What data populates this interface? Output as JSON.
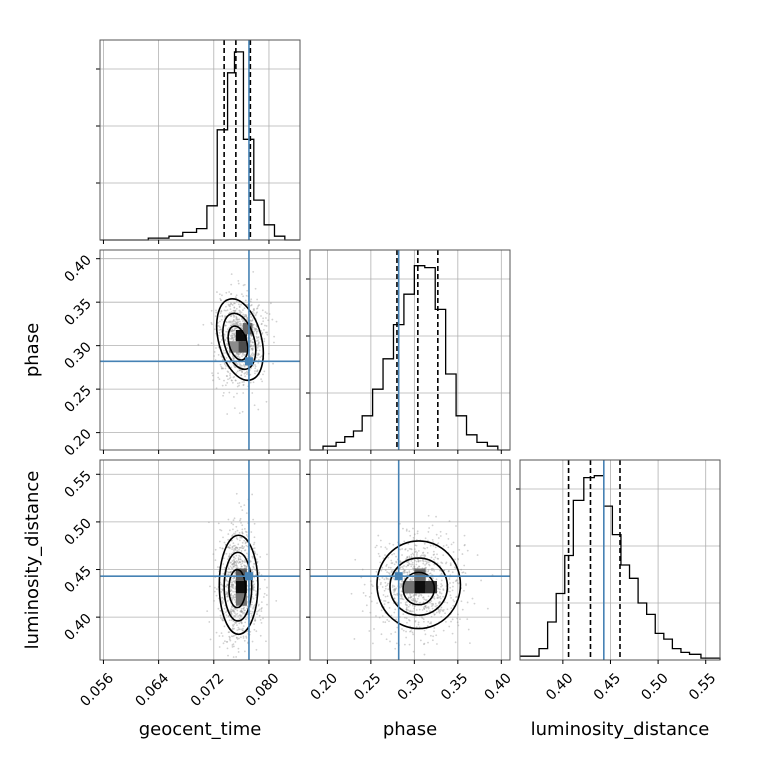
{
  "chart_data": {
    "type": "corner",
    "parameters": [
      {
        "name": "geocent_time",
        "axis_label": "geocent_time",
        "range": [
          0.0555,
          0.0845
        ],
        "ticks": [
          0.056,
          0.064,
          0.072,
          0.08
        ],
        "tick_labels": [
          "0.056",
          "0.064",
          "0.072",
          "0.080"
        ],
        "truth": 0.0771,
        "quantiles": [
          0.0735,
          0.0752,
          0.0773
        ],
        "hist_max": 1.0,
        "histogram": [
          [
            0.0555,
            0.0
          ],
          [
            0.0575,
            0.0
          ],
          [
            0.0625,
            0.01
          ],
          [
            0.0655,
            0.02
          ],
          [
            0.0675,
            0.04
          ],
          [
            0.0695,
            0.06
          ],
          [
            0.071,
            0.18
          ],
          [
            0.0725,
            0.58
          ],
          [
            0.074,
            0.88
          ],
          [
            0.075,
            0.99
          ],
          [
            0.0763,
            0.53
          ],
          [
            0.0778,
            0.21
          ],
          [
            0.0793,
            0.08
          ],
          [
            0.0808,
            0.02
          ],
          [
            0.0823,
            0.0
          ],
          [
            0.0845,
            0.0
          ]
        ]
      },
      {
        "name": "phase",
        "axis_label": "phase",
        "range": [
          0.18,
          0.41
        ],
        "ticks": [
          0.2,
          0.25,
          0.3,
          0.35,
          0.4
        ],
        "tick_labels": [
          "0.20",
          "0.25",
          "0.30",
          "0.35",
          "0.40"
        ],
        "truth": 0.282,
        "quantiles": [
          0.28,
          0.304,
          0.327
        ],
        "hist_max": 1.0,
        "histogram": [
          [
            0.18,
            0.0
          ],
          [
            0.195,
            0.02
          ],
          [
            0.21,
            0.04
          ],
          [
            0.22,
            0.07
          ],
          [
            0.23,
            0.1
          ],
          [
            0.24,
            0.18
          ],
          [
            0.252,
            0.32
          ],
          [
            0.264,
            0.48
          ],
          [
            0.276,
            0.66
          ],
          [
            0.288,
            0.82
          ],
          [
            0.3,
            0.97
          ],
          [
            0.312,
            0.96
          ],
          [
            0.324,
            0.74
          ],
          [
            0.336,
            0.4
          ],
          [
            0.348,
            0.18
          ],
          [
            0.36,
            0.08
          ],
          [
            0.372,
            0.04
          ],
          [
            0.384,
            0.02
          ],
          [
            0.396,
            0.0
          ],
          [
            0.41,
            0.0
          ]
        ]
      },
      {
        "name": "luminosity_distance",
        "axis_label": "luminosity_distance",
        "range": [
          0.355,
          0.565
        ],
        "ticks": [
          0.4,
          0.45,
          0.5,
          0.55
        ],
        "tick_labels": [
          "0.40",
          "0.45",
          "0.50",
          "0.55"
        ],
        "truth": 0.443,
        "quantiles": [
          0.406,
          0.429,
          0.46
        ],
        "hist_max": 1.0,
        "histogram": [
          [
            0.355,
            0.02
          ],
          [
            0.375,
            0.06
          ],
          [
            0.384,
            0.2
          ],
          [
            0.393,
            0.35
          ],
          [
            0.402,
            0.55
          ],
          [
            0.411,
            0.84
          ],
          [
            0.422,
            0.96
          ],
          [
            0.433,
            0.97
          ],
          [
            0.443,
            0.81
          ],
          [
            0.452,
            0.66
          ],
          [
            0.461,
            0.5
          ],
          [
            0.47,
            0.43
          ],
          [
            0.479,
            0.3
          ],
          [
            0.488,
            0.24
          ],
          [
            0.497,
            0.14
          ],
          [
            0.506,
            0.11
          ],
          [
            0.515,
            0.06
          ],
          [
            0.524,
            0.04
          ],
          [
            0.533,
            0.03
          ],
          [
            0.545,
            0.01
          ],
          [
            0.565,
            0.0
          ]
        ]
      }
    ],
    "pairs": [
      {
        "x": "geocent_time",
        "y": "phase",
        "truth_marker": [
          0.0771,
          0.282
        ],
        "density_cells": [
          {
            "x": 0.0752,
            "y": 0.305,
            "w": 0.0016,
            "h": 0.013,
            "shade": 0.95
          },
          {
            "x": 0.0752,
            "y": 0.292,
            "w": 0.0016,
            "h": 0.013,
            "shade": 0.7
          },
          {
            "x": 0.0762,
            "y": 0.313,
            "w": 0.0014,
            "h": 0.013,
            "shade": 0.6
          },
          {
            "x": 0.0742,
            "y": 0.292,
            "w": 0.0014,
            "h": 0.013,
            "shade": 0.45
          }
        ],
        "contours": [
          {
            "cx": 0.0755,
            "cy": 0.303,
            "rx": 0.0013,
            "ry": 0.02,
            "rot": -15
          },
          {
            "cx": 0.0757,
            "cy": 0.305,
            "rx": 0.0022,
            "ry": 0.033,
            "rot": -15
          },
          {
            "cx": 0.0758,
            "cy": 0.307,
            "rx": 0.0031,
            "ry": 0.048,
            "rot": -15
          }
        ]
      },
      {
        "x": "geocent_time",
        "y": "luminosity_distance",
        "truth_marker": [
          0.0771,
          0.443
        ],
        "density_cells": [
          {
            "x": 0.0752,
            "y": 0.425,
            "w": 0.0016,
            "h": 0.013,
            "shade": 0.95
          },
          {
            "x": 0.0752,
            "y": 0.438,
            "w": 0.0016,
            "h": 0.013,
            "shade": 0.65
          },
          {
            "x": 0.0752,
            "y": 0.412,
            "w": 0.0016,
            "h": 0.013,
            "shade": 0.55
          }
        ],
        "contours": [
          {
            "cx": 0.0754,
            "cy": 0.43,
            "rx": 0.0012,
            "ry": 0.02,
            "rot": 0
          },
          {
            "cx": 0.0755,
            "cy": 0.432,
            "rx": 0.002,
            "ry": 0.036,
            "rot": 0
          },
          {
            "cx": 0.0756,
            "cy": 0.434,
            "rx": 0.0028,
            "ry": 0.052,
            "rot": 0
          }
        ]
      },
      {
        "x": "phase",
        "y": "luminosity_distance",
        "truth_marker": [
          0.282,
          0.443
        ],
        "density_cells": [
          {
            "x": 0.3,
            "y": 0.425,
            "w": 0.013,
            "h": 0.013,
            "shade": 0.95
          },
          {
            "x": 0.313,
            "y": 0.425,
            "w": 0.013,
            "h": 0.013,
            "shade": 0.8
          },
          {
            "x": 0.3,
            "y": 0.438,
            "w": 0.013,
            "h": 0.013,
            "shade": 0.6
          },
          {
            "x": 0.287,
            "y": 0.425,
            "w": 0.013,
            "h": 0.013,
            "shade": 0.55
          }
        ],
        "contours": [
          {
            "cx": 0.305,
            "cy": 0.43,
            "rx": 0.018,
            "ry": 0.017,
            "rot": 0
          },
          {
            "cx": 0.305,
            "cy": 0.432,
            "rx": 0.033,
            "ry": 0.03,
            "rot": 0
          },
          {
            "cx": 0.305,
            "cy": 0.434,
            "rx": 0.048,
            "ry": 0.046,
            "rot": 0
          }
        ]
      }
    ],
    "grid": true,
    "colors": {
      "truth": "#4682b4",
      "histogram": "#000000",
      "quantile": "#000000",
      "grid": "#b0b0b0",
      "scatter": "#9a9a9a"
    }
  }
}
